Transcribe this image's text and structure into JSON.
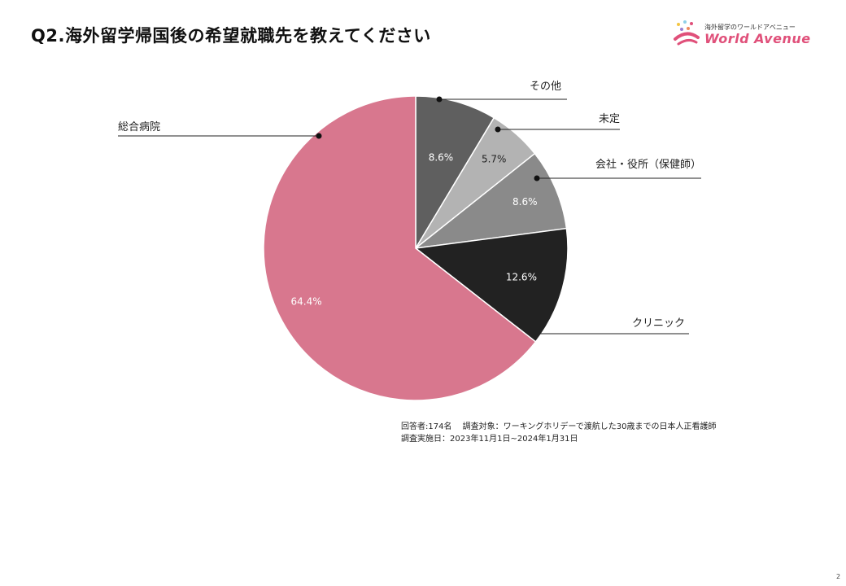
{
  "title": "Q2.海外留学帰国後の希望就職先を教えてください",
  "logo": {
    "tagline": "海外留学のワールドアベニュー",
    "brand": "World Avenue",
    "color": "#e0507a"
  },
  "chart_data": {
    "type": "pie",
    "slices": [
      {
        "label": "その他",
        "value": 8.6,
        "display": "8.6%",
        "color": "#5f5f5f"
      },
      {
        "label": "未定",
        "value": 5.7,
        "display": "5.7%",
        "color": "#b3b3b3"
      },
      {
        "label": "会社・役所（保健師）",
        "value": 8.6,
        "display": "8.6%",
        "color": "#8a8a8a"
      },
      {
        "label": "クリニック",
        "value": 12.6,
        "display": "12.6%",
        "color": "#222222"
      },
      {
        "label": "総合病院",
        "value": 64.4,
        "display": "64.4%",
        "color": "#d8778e"
      }
    ],
    "start": "12 o'clock",
    "direction": "clockwise"
  },
  "notes": {
    "line1": "回答者:174名　 調査対象：ワーキングホリデーで渡航した30歳までの日本人正看護師",
    "line2": "調査実施日：2023年11月1日~2024年1月31日"
  },
  "page_number": "2"
}
